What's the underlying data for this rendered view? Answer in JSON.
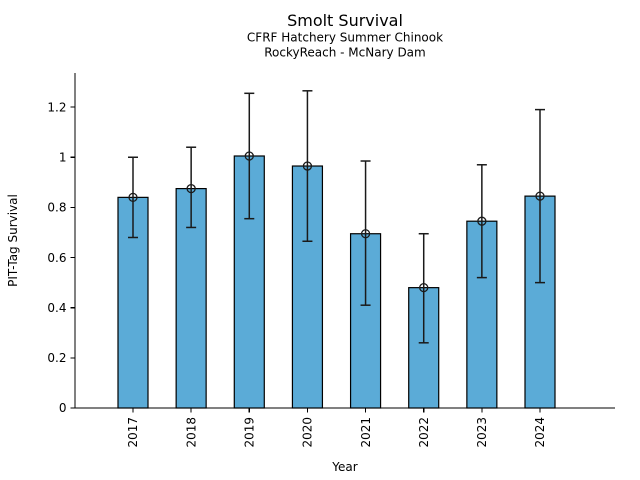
{
  "figure": {
    "title": "Smolt Survival",
    "subtitle_line1": "CFRF Hatchery Summer Chinook",
    "subtitle_line2": "RockyReach - McNary Dam"
  },
  "chart_data": {
    "type": "bar",
    "title": "Smolt Survival",
    "subtitle": [
      "CFRF Hatchery Summer Chinook",
      "RockyReach - McNary Dam"
    ],
    "xlabel": "Year",
    "ylabel": "PIT-Tag Survival",
    "categories": [
      "2017",
      "2018",
      "2019",
      "2020",
      "2021",
      "2022",
      "2023",
      "2024"
    ],
    "series": [
      {
        "name": "PIT-Tag Survival",
        "values": [
          0.84,
          0.875,
          1.005,
          0.965,
          0.695,
          0.48,
          0.745,
          0.845
        ],
        "error_low": [
          0.68,
          0.72,
          0.755,
          0.665,
          0.41,
          0.26,
          0.52,
          0.5
        ],
        "error_high": [
          1.0,
          1.04,
          1.255,
          1.265,
          0.985,
          0.695,
          0.97,
          1.19
        ]
      }
    ],
    "yticks": [
      0,
      0.2,
      0.4,
      0.6,
      0.8,
      1,
      1.2
    ],
    "ytick_labels": [
      "0",
      "0.2",
      "0.4",
      "0.6",
      "0.8",
      "1",
      "1.2"
    ],
    "ylim": [
      0,
      1.336
    ],
    "grid": false,
    "legend": "none",
    "marker": "open-circle",
    "bar_color": "#5babd7",
    "bar_edge_color": "#000000",
    "errorbar_color": "#1a1a1a",
    "axis_color": "#000000",
    "background_color": "#ffffff"
  }
}
